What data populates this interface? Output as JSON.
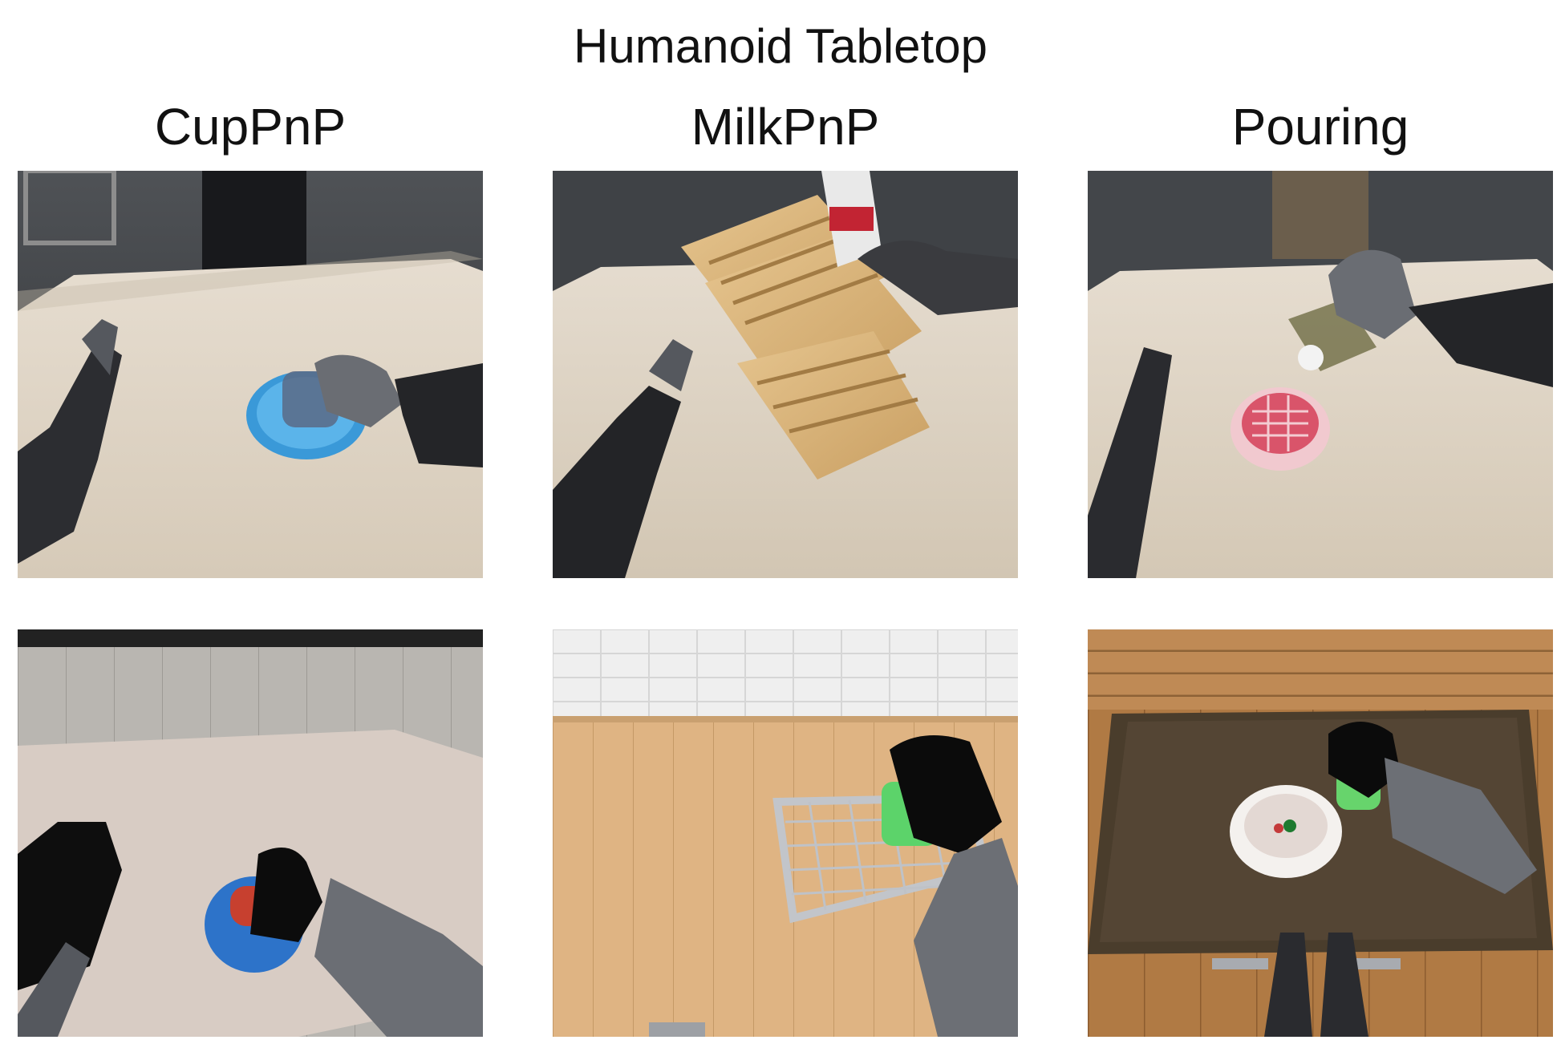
{
  "title": "Humanoid Tabletop",
  "columns": [
    {
      "label": "CupPnP",
      "real_image": "real-robot-cup-pick-and-place",
      "sim_image": "simulated-cup-pick-and-place"
    },
    {
      "label": "MilkPnP",
      "real_image": "real-robot-milk-carton-pick-and-place",
      "sim_image": "simulated-dish-rack-pick-and-place"
    },
    {
      "label": "Pouring",
      "real_image": "real-robot-pouring-into-bowl",
      "sim_image": "simulated-pouring-into-bowl"
    }
  ]
}
